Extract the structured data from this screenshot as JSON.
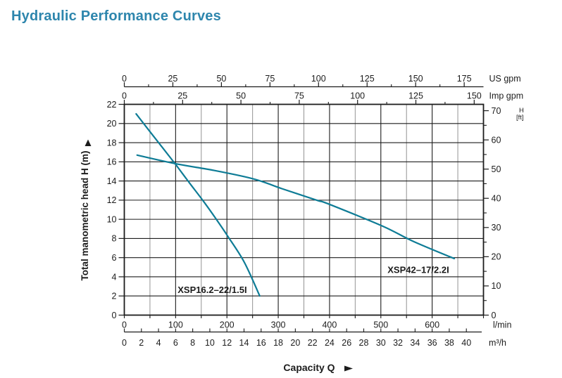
{
  "page": {
    "title": "Hydraulic Performance Curves"
  },
  "icons": {
    "up_arrow": "▲",
    "right_arrow": "►"
  },
  "chart_data": {
    "type": "line",
    "title": "Hydraulic Performance Curves",
    "xlabel": "Capacity Q",
    "ylabel_left": "Total manometric head H (m)",
    "ylabel_right_line1": "H",
    "ylabel_right_line2": "[ft]",
    "x_range_lmin": [
      0,
      700
    ],
    "y_range_m": [
      0,
      22
    ],
    "grid": true,
    "axes": {
      "top_us_gpm": {
        "unit": "US gpm",
        "tick_labels": [
          0,
          25,
          50,
          75,
          100,
          125,
          150,
          175
        ],
        "minor_step": 12.5,
        "lmin_per_unit": 3.7854
      },
      "top_imp_gpm": {
        "unit": "Imp gpm",
        "tick_labels": [
          0,
          25,
          50,
          75,
          100,
          125,
          150
        ],
        "minor_step": 12.5,
        "lmin_per_unit": 4.5461
      },
      "bottom_lmin": {
        "unit": "l/min",
        "tick_labels": [
          0,
          100,
          200,
          300,
          400,
          500,
          600
        ],
        "tick_step": 50,
        "lmin_per_unit": 1
      },
      "bottom_m3h": {
        "unit": "m³/h",
        "tick_labels": [
          0,
          2,
          4,
          6,
          8,
          10,
          12,
          14,
          16,
          18,
          20,
          22,
          24,
          26,
          28,
          30,
          32,
          34,
          36,
          38,
          40
        ],
        "lmin_per_unit": 16.6667
      },
      "left_m": {
        "tick_labels": [
          0,
          2,
          4,
          6,
          8,
          10,
          12,
          14,
          16,
          18,
          20,
          22
        ]
      },
      "right_ft": {
        "tick_labels": [
          0,
          10,
          20,
          30,
          40,
          50,
          60,
          70
        ],
        "minor_step": 5,
        "m_per_unit": 0.3048
      }
    },
    "series": [
      {
        "name": "XSP16.2–22/1.5I",
        "points_lmin_m": [
          [
            23,
            21.0
          ],
          [
            61,
            18.4
          ],
          [
            99,
            15.8
          ],
          [
            127,
            13.8
          ],
          [
            154,
            11.9
          ],
          [
            178,
            10.1
          ],
          [
            202,
            8.2
          ],
          [
            234,
            5.5
          ],
          [
            264,
            2.0
          ]
        ],
        "label_anchor_lmin_m": [
          104,
          2.3
        ]
      },
      {
        "name": "XSP42–17/2.2I",
        "points_lmin_m": [
          [
            25,
            16.7
          ],
          [
            100,
            15.8
          ],
          [
            175,
            15.1
          ],
          [
            253,
            14.2
          ],
          [
            307,
            13.2
          ],
          [
            375,
            12.0
          ],
          [
            398,
            11.6
          ],
          [
            503,
            9.3
          ],
          [
            563,
            7.7
          ],
          [
            643,
            5.9
          ]
        ],
        "label_anchor_lmin_m": [
          513,
          4.4
        ]
      }
    ],
    "colors": {
      "curve": "#0e7c96",
      "title": "#2e86ad",
      "grid_major": "#1c1c1c",
      "grid_minor": "#949494",
      "text": "#1c1c1c"
    }
  }
}
